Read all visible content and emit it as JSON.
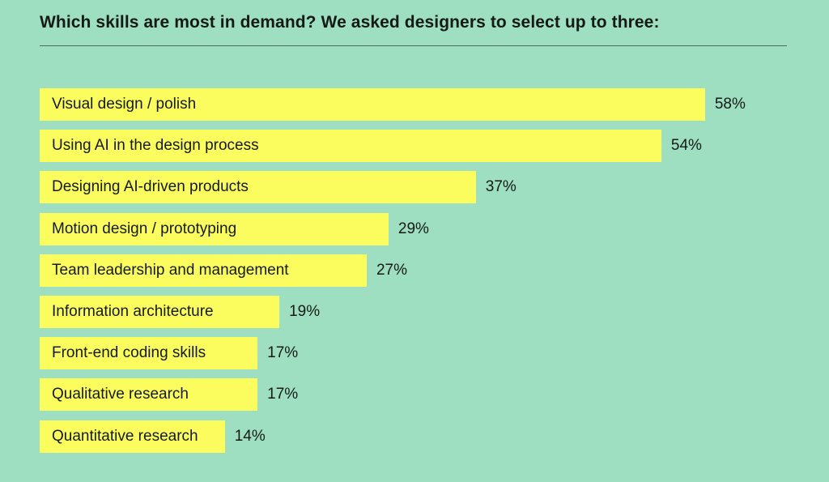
{
  "chart_data": {
    "type": "bar",
    "orientation": "horizontal",
    "title": "Which skills are most in demand? We asked designers to select up to three:",
    "categories": [
      "Visual design / polish",
      "Using AI in the design process",
      "Designing AI-driven products",
      "Motion design / prototyping",
      "Team leadership and management",
      "Information architecture",
      "Front-end coding skills",
      "Qualitative research",
      "Quantitative research"
    ],
    "values": [
      58,
      54,
      37,
      29,
      27,
      19,
      17,
      17,
      14
    ],
    "value_suffix": "%",
    "xlabel": "",
    "ylabel": "",
    "grid": false,
    "colors": {
      "background": "#9ddfc0",
      "bar": "#fbfd5e",
      "text": "#151a17"
    }
  }
}
